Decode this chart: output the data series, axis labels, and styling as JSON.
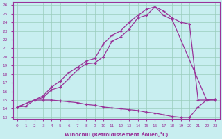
{
  "xlabel": "Windchill (Refroidissement éolien,°C)",
  "xlim": [
    -0.5,
    23.5
  ],
  "ylim": [
    12.8,
    26.3
  ],
  "xticks": [
    0,
    1,
    2,
    3,
    4,
    5,
    6,
    7,
    8,
    9,
    10,
    11,
    12,
    13,
    14,
    15,
    16,
    17,
    18,
    19,
    20,
    21,
    22,
    23
  ],
  "yticks": [
    13,
    14,
    15,
    16,
    17,
    18,
    19,
    20,
    21,
    22,
    23,
    24,
    25,
    26
  ],
  "bg_color": "#c8eef0",
  "line_color": "#993399",
  "grid_color": "#99ccbb",
  "line1_x": [
    0,
    1,
    2,
    3,
    4,
    5,
    6,
    7,
    8,
    9,
    10,
    11,
    12,
    13,
    14,
    15,
    16,
    17,
    18,
    19,
    20,
    21,
    22,
    23
  ],
  "line1_y": [
    14.2,
    14.3,
    15.0,
    15.0,
    15.0,
    14.9,
    14.8,
    14.7,
    14.5,
    14.4,
    14.2,
    14.1,
    14.0,
    13.9,
    13.8,
    13.6,
    13.5,
    13.3,
    13.1,
    13.0,
    13.0,
    14.2,
    15.0,
    15.0
  ],
  "line2_x": [
    0,
    2,
    3,
    4,
    5,
    6,
    7,
    8,
    9,
    10,
    11,
    12,
    13,
    14,
    15,
    16,
    17,
    18,
    22,
    23
  ],
  "line2_y": [
    14.2,
    15.0,
    15.3,
    16.2,
    16.5,
    17.5,
    18.5,
    19.2,
    19.3,
    20.0,
    21.8,
    22.3,
    23.2,
    24.5,
    24.8,
    25.8,
    24.8,
    24.3,
    15.0,
    15.1
  ],
  "line3_x": [
    0,
    2,
    3,
    4,
    5,
    6,
    7,
    8,
    9,
    10,
    11,
    12,
    13,
    14,
    15,
    16,
    17,
    18,
    19,
    20,
    21,
    22,
    23
  ],
  "line3_y": [
    14.2,
    15.0,
    15.5,
    16.5,
    17.2,
    18.2,
    18.8,
    19.5,
    19.8,
    21.5,
    22.5,
    23.0,
    24.0,
    24.8,
    25.5,
    25.8,
    25.3,
    24.5,
    24.0,
    23.8,
    15.0,
    15.0,
    15.1
  ]
}
